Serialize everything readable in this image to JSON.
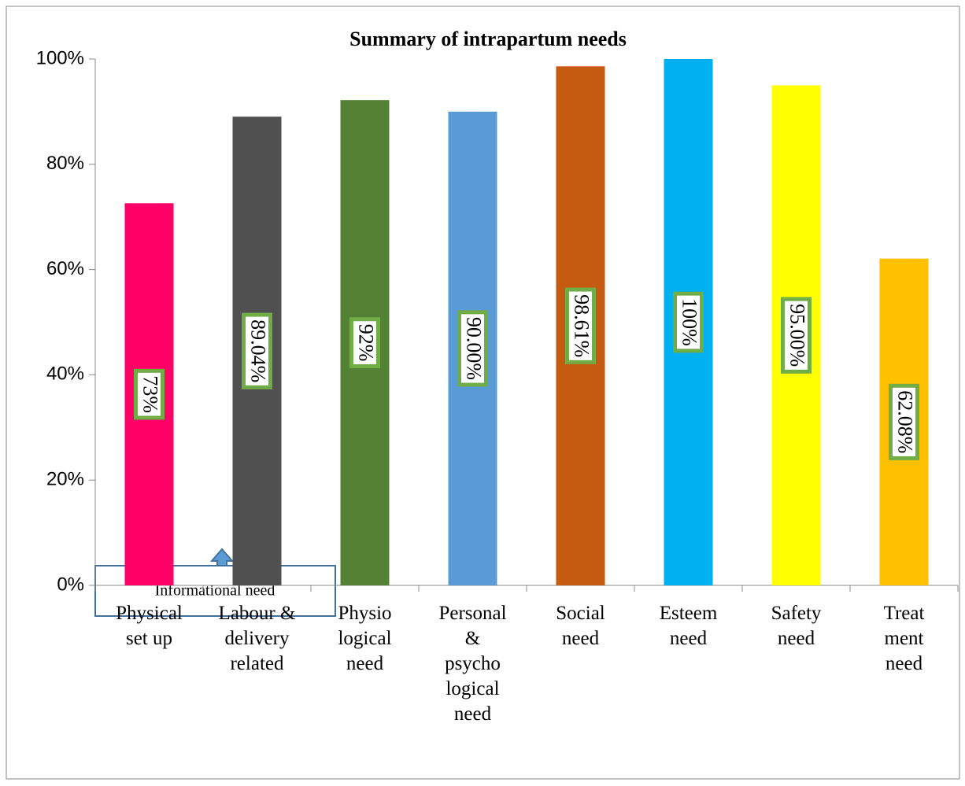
{
  "chart_data": {
    "type": "bar",
    "title": "Summary of intrapartum needs",
    "categories": [
      "Physical\nset up",
      "Labour &\ndelivery\nrelated",
      "Physio\nlogical\nneed",
      "Personal\n&\npsycho\nlogical\nneed",
      "Social\nneed",
      "Esteem\nneed",
      "Safety\nneed",
      "Treat\nment\nneed"
    ],
    "values": [
      72.6,
      89.04,
      92.2,
      90.0,
      98.61,
      100,
      95.0,
      62.08
    ],
    "value_labels": [
      "73%",
      "89.04%",
      "92%",
      "90.00%",
      "98.61%",
      "100%",
      "95.00%",
      "62.08%"
    ],
    "colors": [
      "#ff0066",
      "#505050",
      "#548235",
      "#5b9bd5",
      "#c55a11",
      "#00b0f0",
      "#ffff00",
      "#ffc000"
    ],
    "ylim": [
      0,
      100
    ],
    "yticks": [
      {
        "value": 0,
        "label": "0%"
      },
      {
        "value": 20,
        "label": "20%"
      },
      {
        "value": 40,
        "label": "40%"
      },
      {
        "value": 60,
        "label": "60%"
      },
      {
        "value": 80,
        "label": "80%"
      },
      {
        "value": 100,
        "label": "100%"
      }
    ],
    "annotation": "Informational need"
  }
}
